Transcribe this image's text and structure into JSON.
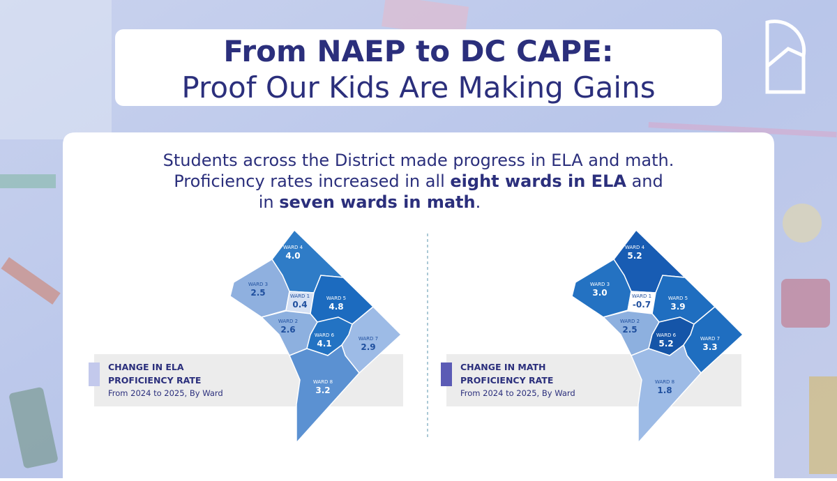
{
  "header": {
    "title_line1": "From NAEP to DC CAPE:",
    "title_line2": "Proof Our Kids Are Making Gains"
  },
  "intro": {
    "line1": "Students across the District made progress in ELA and math.",
    "line2_a": "Proficiency rates increased in all ",
    "line2_b": "eight wards in ELA",
    "line2_c": " and",
    "line3_a": "in ",
    "line3_b": "seven wards in math",
    "line3_c": "."
  },
  "maps": [
    {
      "legend_line1": "CHANGE IN ELA",
      "legend_line2": "PROFICIENCY RATE",
      "legend_note": "From 2024 to 2025, By Ward",
      "swatch_color": "#c3c9ec",
      "wards": [
        {
          "label": "WARD 4",
          "value": "4.0",
          "color": "#2f7cc7"
        },
        {
          "label": "WARD 3",
          "value": "2.5",
          "color": "#8fb0df"
        },
        {
          "label": "WARD 1",
          "value": "0.4",
          "color": "#d6e1f4"
        },
        {
          "label": "WARD 5",
          "value": "4.8",
          "color": "#1c6bbf"
        },
        {
          "label": "WARD 2",
          "value": "2.6",
          "color": "#8db0df"
        },
        {
          "label": "WARD 6",
          "value": "4.1",
          "color": "#2373c3"
        },
        {
          "label": "WARD 7",
          "value": "2.9",
          "color": "#9dbbe6"
        },
        {
          "label": "WARD 8",
          "value": "3.2",
          "color": "#5b91d2"
        }
      ]
    },
    {
      "legend_line1": "CHANGE IN MATH",
      "legend_line2": "PROFICIENCY RATE",
      "legend_note": "From 2024 to 2025, By Ward",
      "swatch_color": "#5b5bb5",
      "wards": [
        {
          "label": "WARD 4",
          "value": "5.2",
          "color": "#185cb3"
        },
        {
          "label": "WARD 3",
          "value": "3.0",
          "color": "#2472c2"
        },
        {
          "label": "WARD 1",
          "value": "-0.7",
          "color": "#ffffff"
        },
        {
          "label": "WARD 5",
          "value": "3.9",
          "color": "#1f6ec0"
        },
        {
          "label": "WARD 2",
          "value": "2.5",
          "color": "#8db0df"
        },
        {
          "label": "WARD 6",
          "value": "5.2",
          "color": "#1555a8"
        },
        {
          "label": "WARD 7",
          "value": "3.3",
          "color": "#1f6ec0"
        },
        {
          "label": "WARD 8",
          "value": "1.8",
          "color": "#9dbbe6"
        }
      ]
    }
  ]
}
